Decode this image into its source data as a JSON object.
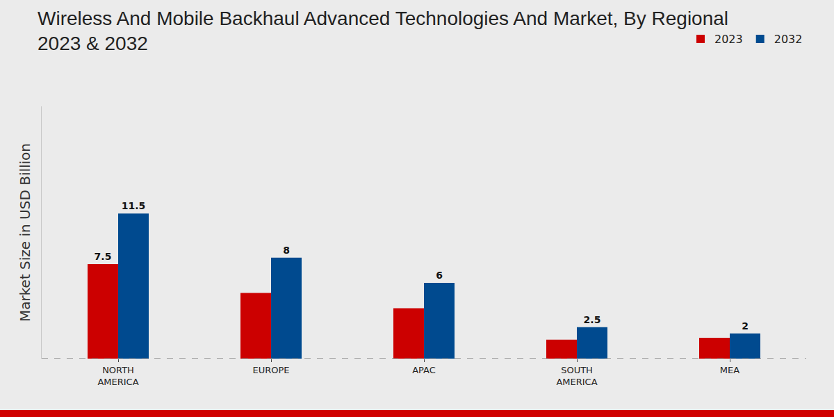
{
  "chart_data": {
    "type": "bar",
    "title": "Wireless And Mobile Backhaul Advanced Technologies And Market, By Regional\n2023 & 2032",
    "y_label": "Market Size in USD Billion",
    "categories": [
      "NORTH\nAMERICA",
      "EUROPE",
      "APAC",
      "SOUTH\nAMERICA",
      "MEA"
    ],
    "series": [
      {
        "name": "2023",
        "color": "#cc0000",
        "values": [
          7.5,
          5.2,
          4.0,
          1.5,
          1.65
        ],
        "value_labels": [
          "7.5",
          null,
          null,
          null,
          null
        ]
      },
      {
        "name": "2032",
        "color": "#004a8f",
        "values": [
          11.5,
          8.0,
          6.0,
          2.5,
          2.0
        ]
      }
    ],
    "ylim": [
      0,
      20
    ],
    "tick_labels": "x",
    "grid": false,
    "legend": "top right",
    "data_labels": true
  }
}
